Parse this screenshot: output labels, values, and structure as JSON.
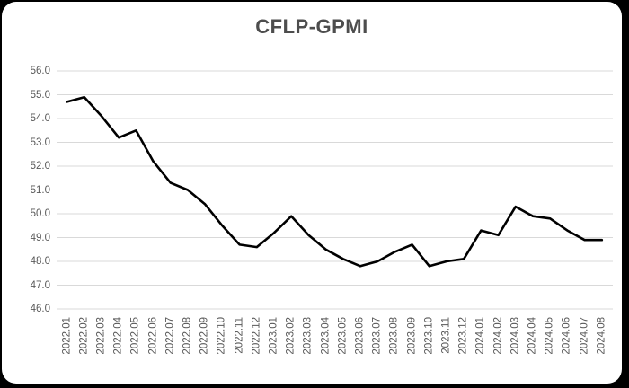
{
  "page": {
    "background_color": "#000000",
    "card_color": "#ffffff"
  },
  "chart_data": {
    "type": "line",
    "title": "CFLP-GPMI",
    "categories": [
      "2022.01",
      "2022.02",
      "2022.03",
      "2022.04",
      "2022.05",
      "2022.06",
      "2022.07",
      "2022.08",
      "2022.09",
      "2022.10",
      "2022.11",
      "2022.12",
      "2023.01",
      "2023.02",
      "2023.03",
      "2023.04",
      "2023.05",
      "2023.06",
      "2023.07",
      "2023.08",
      "2023.09",
      "2023.10",
      "2023.11",
      "2023.12",
      "2024.01",
      "2024.02",
      "2024.03",
      "2024.04",
      "2024.05",
      "2024.06",
      "2024.07",
      "2024.08"
    ],
    "series": [
      {
        "name": "CFLP-GPMI",
        "values": [
          54.7,
          54.9,
          54.1,
          53.2,
          53.5,
          52.2,
          51.3,
          51.0,
          50.4,
          49.5,
          48.7,
          48.6,
          49.2,
          49.9,
          49.1,
          48.5,
          48.1,
          47.8,
          48.0,
          48.4,
          48.7,
          47.8,
          48.0,
          48.1,
          49.3,
          49.1,
          50.3,
          49.9,
          49.8,
          49.3,
          48.9,
          48.9
        ]
      }
    ],
    "ylim": [
      46.0,
      56.0
    ],
    "ytick_step": 1.0,
    "ytick_labels": [
      "56.0",
      "55.0",
      "54.0",
      "53.0",
      "52.0",
      "51.0",
      "50.0",
      "49.0",
      "48.0",
      "47.0",
      "46.0"
    ],
    "xlabel": "",
    "ylabel": "",
    "grid": "horizontal",
    "legend": "none",
    "line_color": "#000000",
    "gridline_color": "#d9d9d9",
    "axis_label_color": "#595959",
    "title_color": "#4d4d4d"
  }
}
